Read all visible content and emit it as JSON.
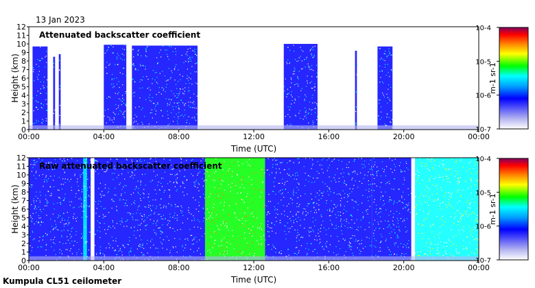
{
  "header": {
    "date": "13 Jan 2023"
  },
  "footer": {
    "site_label": "Kumpula CL51 ceilometer"
  },
  "colors": {
    "scale": [
      "#ffffff",
      "#b4b4f0",
      "#0000ff",
      "#00a0ff",
      "#00ffff",
      "#00ff00",
      "#ffff00",
      "#ff8000",
      "#ff0000",
      "#800060"
    ],
    "frame": "#000000"
  },
  "chart_data": [
    {
      "type": "heatmap",
      "title": "Attenuated backscatter coefficient",
      "xlabel": "Time (UTC)",
      "ylabel": "Height (km)",
      "xticks": [
        "00:00",
        "04:00",
        "08:00",
        "12:00",
        "16:00",
        "20:00",
        "00:00"
      ],
      "xlim_hours": [
        0,
        24
      ],
      "yticks": [
        "0",
        "1",
        "2",
        "3",
        "4",
        "5",
        "6",
        "7",
        "8",
        "9",
        "10",
        "11",
        "12"
      ],
      "ylim_km": [
        0,
        12
      ],
      "colorbar": {
        "label": "m-1 sr-1",
        "ticks": [
          "10-7",
          "10-6",
          "10-5",
          "10-4"
        ],
        "range_log10": [
          -7,
          -4
        ]
      },
      "signal_blocks": [
        {
          "start_h": 0.2,
          "end_h": 1.0,
          "top_km": 9.7,
          "level": -6.3
        },
        {
          "start_h": 1.3,
          "end_h": 1.4,
          "top_km": 8.5,
          "level": -6.4
        },
        {
          "start_h": 1.6,
          "end_h": 1.7,
          "top_km": 8.8,
          "level": -6.4
        },
        {
          "start_h": 4.0,
          "end_h": 5.2,
          "top_km": 9.9,
          "level": -6.2
        },
        {
          "start_h": 5.5,
          "end_h": 9.0,
          "top_km": 9.8,
          "level": -6.2
        },
        {
          "start_h": 13.6,
          "end_h": 15.4,
          "top_km": 10.0,
          "level": -6.2
        },
        {
          "start_h": 17.4,
          "end_h": 17.5,
          "top_km": 9.2,
          "level": -6.4
        },
        {
          "start_h": 18.6,
          "end_h": 19.4,
          "top_km": 9.7,
          "level": -6.2
        }
      ]
    },
    {
      "type": "heatmap",
      "title": "Raw attenuated backscatter coefficient",
      "xlabel": "Time (UTC)",
      "ylabel": "Height (km)",
      "xticks": [
        "00:00",
        "04:00",
        "08:00",
        "12:00",
        "16:00",
        "20:00",
        "00:00"
      ],
      "xlim_hours": [
        0,
        24
      ],
      "yticks": [
        "0",
        "1",
        "2",
        "3",
        "4",
        "5",
        "6",
        "7",
        "8",
        "9",
        "10",
        "11",
        "12"
      ],
      "ylim_km": [
        0,
        12
      ],
      "colorbar": {
        "label": "m-1 sr-1",
        "ticks": [
          "10-7",
          "10-6",
          "10-5",
          "10-4"
        ],
        "range_log10": [
          -7,
          -4
        ]
      },
      "signal_blocks": [
        {
          "start_h": 0.0,
          "end_h": 3.3,
          "top_km": 12.0,
          "level": -6.3
        },
        {
          "start_h": 2.9,
          "end_h": 3.1,
          "top_km": 12.0,
          "level": -5.8
        },
        {
          "start_h": 3.5,
          "end_h": 9.4,
          "top_km": 12.0,
          "level": -6.3
        },
        {
          "start_h": 9.4,
          "end_h": 12.6,
          "top_km": 12.0,
          "level": -5.3
        },
        {
          "start_h": 12.6,
          "end_h": 18.3,
          "top_km": 12.0,
          "level": -6.4
        },
        {
          "start_h": 18.3,
          "end_h": 20.4,
          "top_km": 12.0,
          "level": -6.3
        },
        {
          "start_h": 20.6,
          "end_h": 24.0,
          "top_km": 12.0,
          "level": -5.6
        }
      ]
    }
  ]
}
